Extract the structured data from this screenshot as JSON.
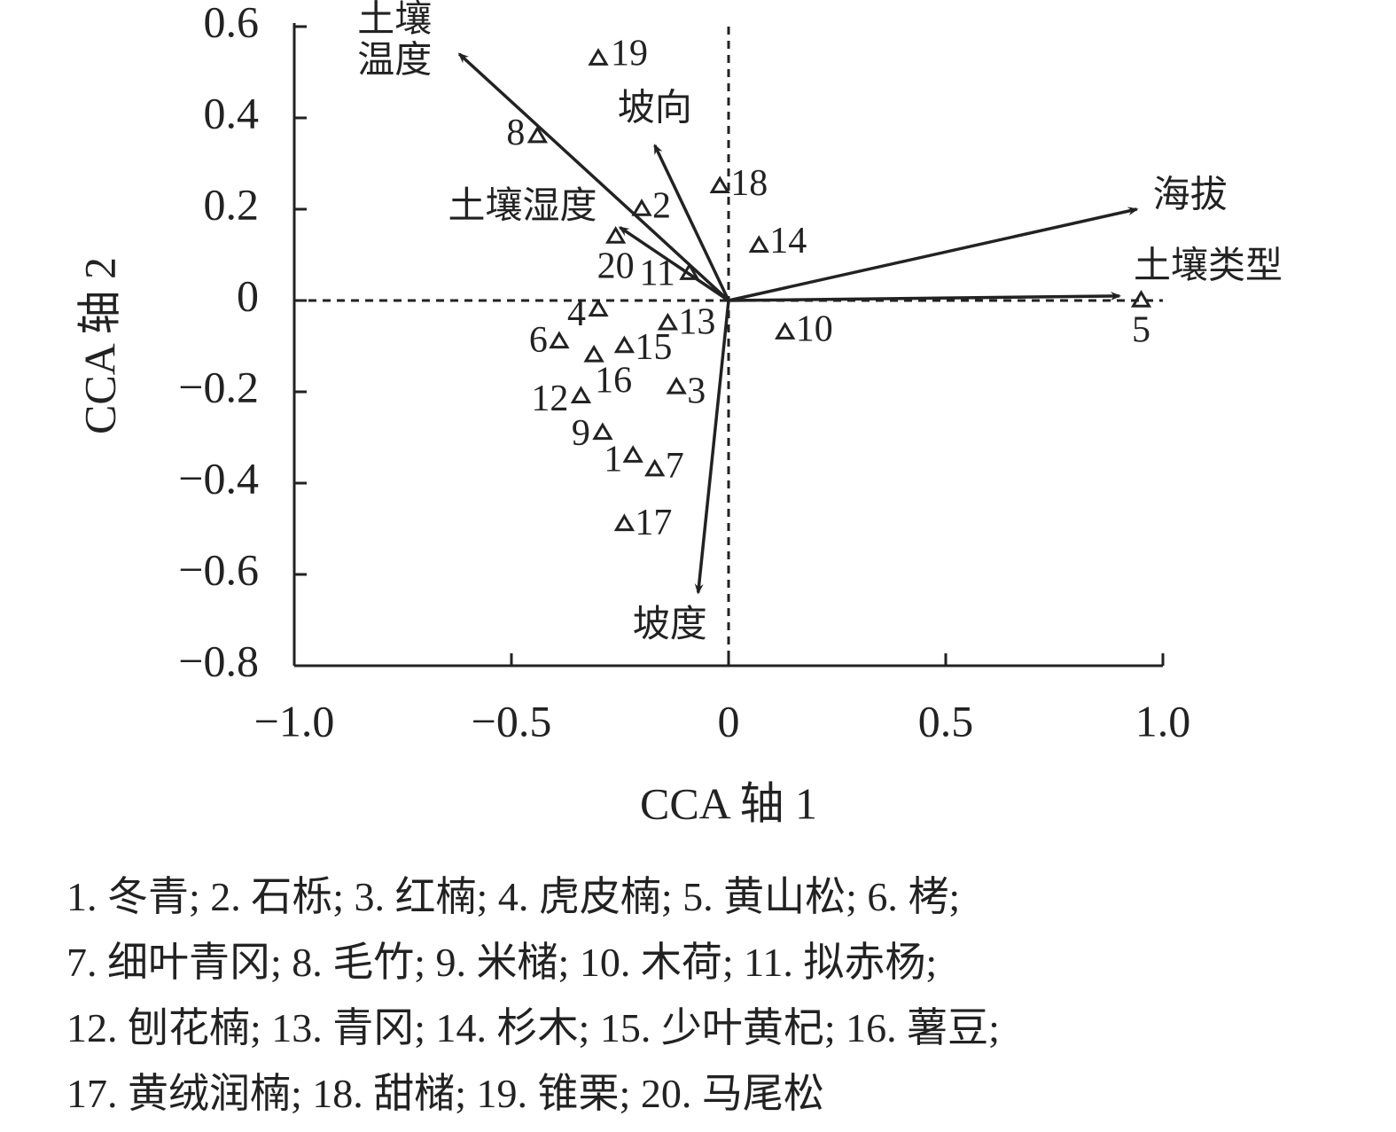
{
  "chart_data": {
    "type": "scatter",
    "xlabel": "CCA 轴 1",
    "ylabel": "CCA 轴 2",
    "xlim": [
      -1.0,
      1.0
    ],
    "ylim": [
      -0.8,
      0.6
    ],
    "xticks": [
      {
        "value": -1.0,
        "label": "−1.0"
      },
      {
        "value": -0.5,
        "label": "−0.5"
      },
      0,
      0.5,
      {
        "value": 1.0,
        "label": "1.0"
      }
    ],
    "yticks": [
      {
        "value": -0.8,
        "label": "−0.8"
      },
      {
        "value": -0.6,
        "label": "−0.6"
      },
      {
        "value": -0.4,
        "label": "−0.4"
      },
      {
        "value": -0.2,
        "label": "−0.2"
      },
      0,
      0.2,
      0.4,
      0.6
    ],
    "points": [
      {
        "label": "1",
        "x": -0.22,
        "y": -0.34
      },
      {
        "label": "2",
        "x": -0.2,
        "y": 0.2
      },
      {
        "label": "3",
        "x": -0.12,
        "y": -0.19
      },
      {
        "label": "4",
        "x": -0.3,
        "y": -0.02
      },
      {
        "label": "5",
        "x": 0.95,
        "y": 0.0
      },
      {
        "label": "6",
        "x": -0.39,
        "y": -0.09
      },
      {
        "label": "7",
        "x": -0.17,
        "y": -0.37
      },
      {
        "label": "8",
        "x": -0.44,
        "y": 0.36
      },
      {
        "label": "9",
        "x": -0.29,
        "y": -0.29
      },
      {
        "label": "10",
        "x": 0.13,
        "y": -0.07
      },
      {
        "label": "11",
        "x": -0.09,
        "y": 0.06
      },
      {
        "label": "12",
        "x": -0.34,
        "y": -0.21
      },
      {
        "label": "13",
        "x": -0.14,
        "y": -0.05
      },
      {
        "label": "14",
        "x": 0.07,
        "y": 0.12
      },
      {
        "label": "15",
        "x": -0.24,
        "y": -0.1
      },
      {
        "label": "16",
        "x": -0.31,
        "y": -0.12
      },
      {
        "label": "17",
        "x": -0.24,
        "y": -0.49
      },
      {
        "label": "18",
        "x": -0.02,
        "y": 0.25
      },
      {
        "label": "19",
        "x": -0.3,
        "y": 0.53
      },
      {
        "label": "20",
        "x": -0.26,
        "y": 0.14
      }
    ],
    "vectors": [
      {
        "label": [
          "土壤",
          "温度"
        ],
        "x": -0.62,
        "y": 0.54
      },
      {
        "label": "坡向",
        "x": -0.17,
        "y": 0.34
      },
      {
        "label": "土壤湿度",
        "x": -0.25,
        "y": 0.16
      },
      {
        "label": "海拔",
        "x": 0.94,
        "y": 0.2
      },
      {
        "label": "土壤类型",
        "x": 0.9,
        "y": 0.01
      },
      {
        "label": "坡度",
        "x": -0.07,
        "y": -0.64
      }
    ],
    "caption": [
      "1. 冬青; 2. 石栎; 3. 红楠; 4. 虎皮楠; 5. 黄山松; 6. 栲;",
      "7. 细叶青冈; 8. 毛竹; 9. 米槠; 10. 木荷; 11. 拟赤杨;",
      "12. 刨花楠; 13. 青冈; 14. 杉木; 15. 少叶黄杞; 16. 薯豆;",
      "17. 黄绒润楠; 18. 甜槠; 19. 锥栗; 20. 马尾松"
    ]
  }
}
